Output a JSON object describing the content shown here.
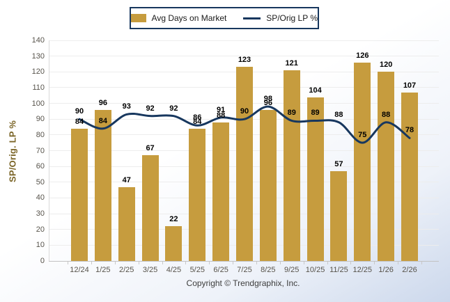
{
  "legend": {
    "bar_label": "Avg Days on Market",
    "line_label": "SP/Orig LP %"
  },
  "footer": {
    "copyright": "Copyright © Trendgraphix, Inc."
  },
  "colors": {
    "bar": "#C69C3E",
    "line": "#17375E",
    "grid": "#ededed",
    "tick_text": "#57534b",
    "y_title": "#7a6426",
    "legend_border": "#17375E",
    "background_edge": "#ccd8ec"
  },
  "chart_data": {
    "type": "combo",
    "categories": [
      "12/24",
      "1/25",
      "2/25",
      "3/25",
      "4/25",
      "5/25",
      "6/25",
      "7/25",
      "8/25",
      "9/25",
      "10/25",
      "11/25",
      "12/25",
      "1/26",
      "2/26"
    ],
    "series": [
      {
        "name": "Avg Days on Market",
        "type": "bar",
        "values": [
          84,
          96,
          47,
          67,
          22,
          84,
          88,
          123,
          96,
          121,
          104,
          57,
          126,
          120,
          107
        ]
      },
      {
        "name": "SP/Orig LP %",
        "type": "line",
        "values": [
          90,
          84,
          93,
          92,
          92,
          86,
          91,
          90,
          98,
          89,
          89,
          88,
          75,
          88,
          78
        ]
      }
    ],
    "ylabel": "SP/Orig. LP %",
    "ylim": [
      0,
      140
    ],
    "y_ticks": [
      0,
      10,
      20,
      30,
      40,
      50,
      60,
      70,
      80,
      90,
      100,
      110,
      120,
      130,
      140
    ],
    "grid": true,
    "legend_position": "top"
  }
}
